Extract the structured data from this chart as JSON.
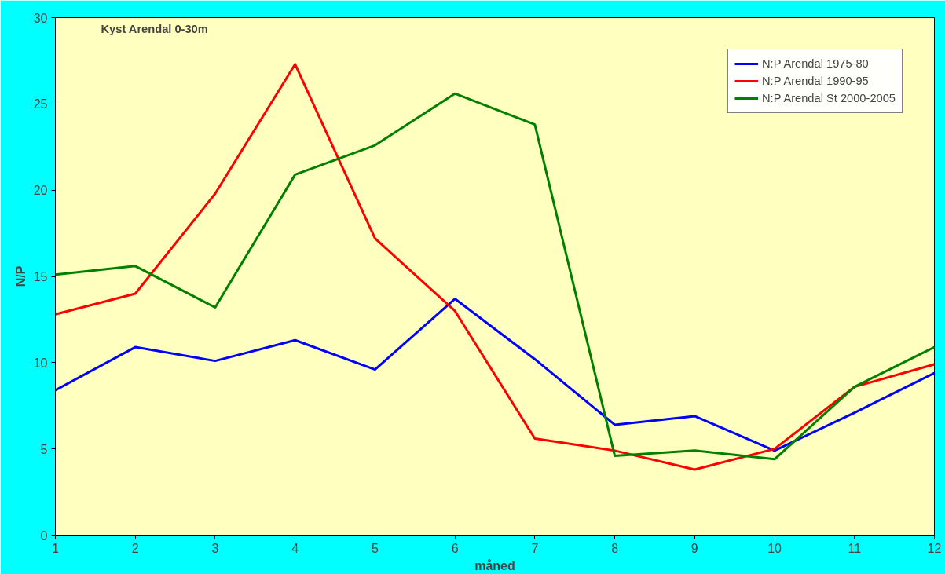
{
  "chart_data": {
    "type": "line",
    "title": "Kyst Arendal 0-30m",
    "xlabel": "måned",
    "ylabel": "N/P",
    "x": [
      1,
      2,
      3,
      4,
      5,
      6,
      7,
      8,
      9,
      10,
      11,
      12
    ],
    "xlim": [
      1,
      12
    ],
    "xticks": [
      1,
      2,
      3,
      4,
      5,
      6,
      7,
      8,
      9,
      10,
      11,
      12
    ],
    "ylim": [
      0,
      30
    ],
    "yticks": [
      0,
      5,
      10,
      15,
      20,
      25,
      30
    ],
    "grid": false,
    "legend": "top right",
    "marker": "none",
    "line_style": "solid",
    "series": [
      {
        "name": "N:P Arendal 1975-80",
        "color": "#0000ff",
        "values": [
          8.4,
          10.9,
          10.1,
          11.3,
          9.6,
          13.7,
          10.2,
          6.4,
          6.9,
          4.9,
          7.1,
          9.4
        ]
      },
      {
        "name": "N:P Arendal 1990-95",
        "color": "#ff0000",
        "values": [
          12.8,
          14.0,
          19.8,
          27.3,
          17.2,
          13.0,
          5.6,
          4.9,
          3.8,
          5.0,
          8.6,
          9.9
        ]
      },
      {
        "name": "N:P Arendal St 2000-2005",
        "color": "#008000",
        "values": [
          15.1,
          15.6,
          13.2,
          20.9,
          22.6,
          25.6,
          23.8,
          4.6,
          4.9,
          4.4,
          8.6,
          10.9
        ]
      }
    ]
  }
}
